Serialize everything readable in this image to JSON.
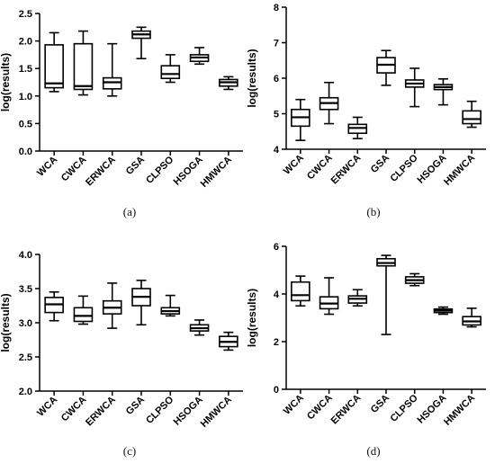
{
  "panel_labels": [
    "(a)",
    "(b)",
    "(c)",
    "(d)"
  ],
  "chart_data": [
    {
      "type": "box",
      "panel": "(a)",
      "ylabel": "log(results)",
      "xlabel": "",
      "title": "",
      "ylim": [
        0.0,
        2.5
      ],
      "yticks": [
        0.0,
        0.5,
        1.0,
        1.5,
        2.0,
        2.5
      ],
      "ytick_labels": [
        "0.0",
        "0.5",
        "1.0",
        "1.5",
        "2.0",
        "2.5"
      ],
      "grid": false,
      "categories": [
        "WCA",
        "CWCA",
        "ERWCA",
        "GSA",
        "CLPSO",
        "HSOGA",
        "HMWCA"
      ],
      "boxes": [
        {
          "min": 1.08,
          "q1": 1.15,
          "median": 1.23,
          "q3": 1.93,
          "max": 2.15
        },
        {
          "min": 1.02,
          "q1": 1.12,
          "median": 1.18,
          "q3": 1.95,
          "max": 2.18
        },
        {
          "min": 1.0,
          "q1": 1.13,
          "median": 1.25,
          "q3": 1.33,
          "max": 1.95
        },
        {
          "min": 1.68,
          "q1": 2.05,
          "median": 2.12,
          "q3": 2.18,
          "max": 2.25
        },
        {
          "min": 1.25,
          "q1": 1.32,
          "median": 1.4,
          "q3": 1.55,
          "max": 1.75
        },
        {
          "min": 1.58,
          "q1": 1.63,
          "median": 1.7,
          "q3": 1.75,
          "max": 1.88
        },
        {
          "min": 1.12,
          "q1": 1.18,
          "median": 1.25,
          "q3": 1.3,
          "max": 1.35
        }
      ]
    },
    {
      "type": "box",
      "panel": "(b)",
      "ylabel": "log(results)",
      "xlabel": "",
      "title": "",
      "ylim": [
        4,
        8
      ],
      "yticks": [
        4,
        5,
        6,
        7,
        8
      ],
      "ytick_labels": [
        "4",
        "5",
        "6",
        "7",
        "8"
      ],
      "grid": false,
      "categories": [
        "WCA",
        "CWCA",
        "ERWCA",
        "GSA",
        "CLPSO",
        "HSOGA",
        "HMWCA"
      ],
      "boxes": [
        {
          "min": 4.25,
          "q1": 4.65,
          "median": 4.9,
          "q3": 5.12,
          "max": 5.4
        },
        {
          "min": 4.72,
          "q1": 5.12,
          "median": 5.3,
          "q3": 5.45,
          "max": 5.88
        },
        {
          "min": 4.3,
          "q1": 4.45,
          "median": 4.6,
          "q3": 4.7,
          "max": 4.9
        },
        {
          "min": 5.8,
          "q1": 6.15,
          "median": 6.38,
          "q3": 6.58,
          "max": 6.78
        },
        {
          "min": 5.2,
          "q1": 5.75,
          "median": 5.85,
          "q3": 5.95,
          "max": 6.28
        },
        {
          "min": 5.25,
          "q1": 5.68,
          "median": 5.75,
          "q3": 5.82,
          "max": 5.98
        },
        {
          "min": 4.62,
          "q1": 4.72,
          "median": 4.85,
          "q3": 5.08,
          "max": 5.35
        }
      ]
    },
    {
      "type": "box",
      "panel": "(c)",
      "ylabel": "log(results)",
      "xlabel": "",
      "title": "",
      "ylim": [
        2.0,
        4.0
      ],
      "yticks": [
        2.0,
        2.5,
        3.0,
        3.5,
        4.0
      ],
      "ytick_labels": [
        "2.0",
        "2.5",
        "3.0",
        "3.5",
        "4.0"
      ],
      "grid": false,
      "categories": [
        "WCA",
        "CWCA",
        "ERWCA",
        "GSA",
        "CLPSO",
        "HSOGA",
        "HMWCA"
      ],
      "boxes": [
        {
          "min": 3.03,
          "q1": 3.15,
          "median": 3.27,
          "q3": 3.37,
          "max": 3.45
        },
        {
          "min": 2.98,
          "q1": 3.02,
          "median": 3.1,
          "q3": 3.22,
          "max": 3.39
        },
        {
          "min": 2.92,
          "q1": 3.13,
          "median": 3.22,
          "q3": 3.32,
          "max": 3.58
        },
        {
          "min": 2.97,
          "q1": 3.25,
          "median": 3.38,
          "q3": 3.5,
          "max": 3.62
        },
        {
          "min": 3.1,
          "q1": 3.13,
          "median": 3.17,
          "q3": 3.22,
          "max": 3.4
        },
        {
          "min": 2.82,
          "q1": 2.88,
          "median": 2.92,
          "q3": 2.97,
          "max": 3.04
        },
        {
          "min": 2.6,
          "q1": 2.65,
          "median": 2.72,
          "q3": 2.8,
          "max": 2.86
        }
      ]
    },
    {
      "type": "box",
      "panel": "(d)",
      "ylabel": "log(results)",
      "xlabel": "",
      "title": "",
      "ylim": [
        0,
        6
      ],
      "yticks": [
        0,
        2,
        4,
        6
      ],
      "ytick_labels": [
        "0",
        "2",
        "4",
        "6"
      ],
      "grid": false,
      "categories": [
        "WCA",
        "CWCA",
        "ERWCA",
        "GSA",
        "CLPSO",
        "HSOGA",
        "HMWCA"
      ],
      "boxes": [
        {
          "min": 3.5,
          "q1": 3.72,
          "median": 3.95,
          "q3": 4.5,
          "max": 4.75
        },
        {
          "min": 3.15,
          "q1": 3.38,
          "median": 3.6,
          "q3": 3.88,
          "max": 4.68
        },
        {
          "min": 3.5,
          "q1": 3.62,
          "median": 3.8,
          "q3": 3.92,
          "max": 4.18
        },
        {
          "min": 2.3,
          "q1": 5.18,
          "median": 5.3,
          "q3": 5.48,
          "max": 5.62
        },
        {
          "min": 4.35,
          "q1": 4.45,
          "median": 4.58,
          "q3": 4.72,
          "max": 4.85
        },
        {
          "min": 3.15,
          "q1": 3.22,
          "median": 3.3,
          "q3": 3.37,
          "max": 3.45
        },
        {
          "min": 2.62,
          "q1": 2.7,
          "median": 2.85,
          "q3": 3.05,
          "max": 3.4
        }
      ]
    }
  ]
}
